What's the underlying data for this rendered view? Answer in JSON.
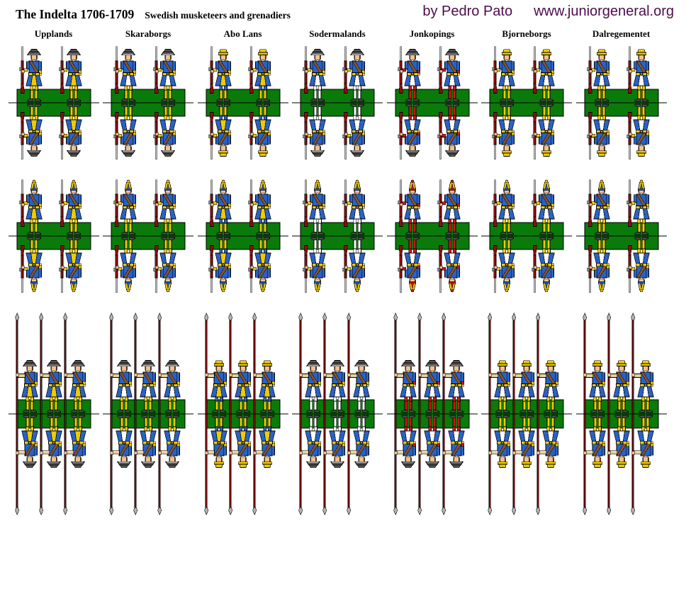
{
  "header": {
    "title": "The Indelta 1706-1709",
    "subtitle": "Swedish musketeers and grenadiers",
    "byline": "by Pedro Pato",
    "site": "www.juniorgeneral.org",
    "byline_color": "#4c0d4c"
  },
  "palette": {
    "base_green": "#0a7a0a",
    "wood_maroon": "#8b0e0e",
    "coat_blue": "#2a62c4",
    "yellow": "#eecc00",
    "red": "#d41414",
    "white": "#ffffff",
    "flesh": "#f0c08c",
    "hair_brown": "#7a4a1e",
    "belt_brown": "#8a5526",
    "hat_gray": "#565656",
    "hat_trim": "#c9c9c9",
    "shoe_gray": "#4c4c4c",
    "metal_silver": "#c4c4c4",
    "lock_gray": "#8a8a8a",
    "pike_head_gray": "#b4b4b4",
    "glove_tan": "#e6d3a3",
    "buckle_dark": "#1a1a1a"
  },
  "regiments": [
    {
      "name": "Upplands",
      "hat": "tricorn",
      "hat_trim": "#b9b9b9",
      "cuffs": "yellow",
      "waistcoat": "yellow",
      "breeches": "yellow",
      "stockings": "yellow",
      "mitre_front": "blue",
      "mitre_ball": "yellow"
    },
    {
      "name": "Skaraborgs",
      "hat": "tricorn",
      "hat_trim": "#ffffff",
      "cuffs": "yellow",
      "waistcoat": "white",
      "breeches": "yellow",
      "stockings": "yellow",
      "mitre_front": "blue",
      "mitre_ball": "yellow"
    },
    {
      "name": "Abo Lans",
      "hat": "cap",
      "hat_trim": "#b9b9b9",
      "cuffs": "yellow",
      "waistcoat": "yellow",
      "breeches": "blue",
      "stockings": "yellow",
      "mitre_front": "blue",
      "mitre_ball": "yellow"
    },
    {
      "name": "Sodermalands",
      "hat": "tricorn",
      "hat_trim": "#ffffff",
      "cuffs": "yellow",
      "waistcoat": "white",
      "breeches": "white",
      "stockings": "white",
      "mitre_front": "blue",
      "mitre_ball": "yellow"
    },
    {
      "name": "Jonkopings",
      "hat": "tricorn",
      "hat_trim": "#b9b9b9",
      "cuffs": "red",
      "waistcoat": "white",
      "breeches": "red",
      "stockings": "red",
      "mitre_front": "red",
      "mitre_ball": "red"
    },
    {
      "name": "Bjorneborgs",
      "hat": "cap",
      "hat_trim": "#b9b9b9",
      "cuffs": "yellow",
      "waistcoat": "white",
      "breeches": "yellow",
      "stockings": "yellow",
      "mitre_front": "blue",
      "mitre_ball": "yellow"
    },
    {
      "name": "Dalregementet",
      "hat": "cap",
      "hat_trim": "#b9b9b9",
      "cuffs": "yellow",
      "waistcoat": "white",
      "breeches": "yellow",
      "stockings": "yellow",
      "mitre_front": "blue",
      "mitre_ball": "yellow"
    }
  ],
  "rows": [
    {
      "type": "musketeer",
      "figures_per_unit": 2
    },
    {
      "type": "grenadier",
      "figures_per_unit": 2
    },
    {
      "type": "pikeman",
      "figures_per_unit": 3
    }
  ]
}
